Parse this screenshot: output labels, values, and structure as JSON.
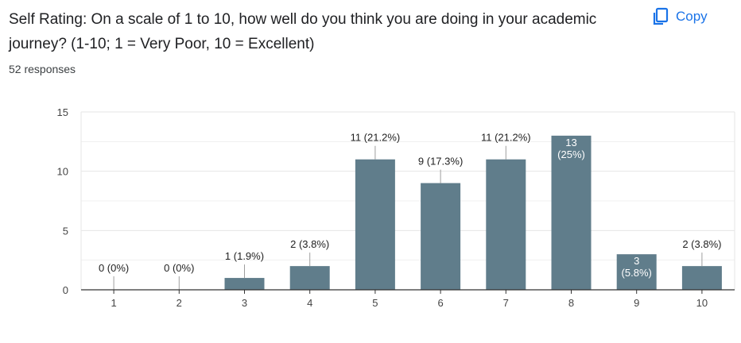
{
  "question": {
    "title": "Self Rating: On a scale of 1 to 10, how well do you think you are doing in your academic journey? (1-10; 1 = Very Poor, 10 = Excellent)",
    "response_count": "52 responses"
  },
  "actions": {
    "copy_label": "Copy",
    "copy_icon": "copy-icon"
  },
  "colors": {
    "bar": "#607d8b",
    "accent": "#1a73e8",
    "grid": "#e6e6e6",
    "axis": "#333333"
  },
  "chart_data": {
    "type": "bar",
    "categories": [
      "1",
      "2",
      "3",
      "4",
      "5",
      "6",
      "7",
      "8",
      "9",
      "10"
    ],
    "values": [
      0,
      0,
      1,
      2,
      11,
      9,
      11,
      13,
      3,
      2
    ],
    "labels": [
      "0 (0%)",
      "0 (0%)",
      "1 (1.9%)",
      "2 (3.8%)",
      "11 (21.2%)",
      "9 (17.3%)",
      "11 (21.2%)",
      "13 (25%)",
      "3 (5.8%)",
      "2 (3.8%)"
    ],
    "yticks": [
      0,
      5,
      10,
      15
    ],
    "ylim": [
      0,
      15
    ],
    "title": "",
    "xlabel": "",
    "ylabel": "",
    "grid": true
  }
}
